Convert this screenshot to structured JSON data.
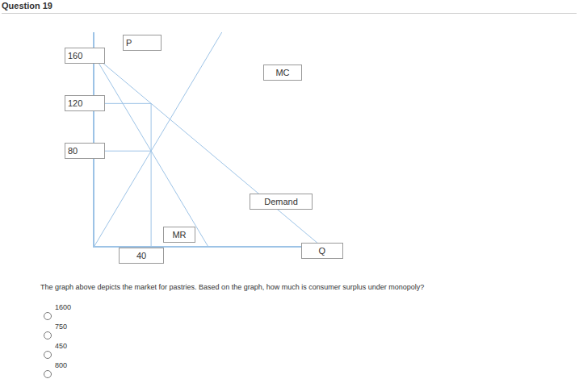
{
  "header": {
    "title": "Question 19"
  },
  "chart_data": {
    "type": "line",
    "x_label": "Q",
    "y_label": "P",
    "xlim": [
      0,
      170
    ],
    "ylim": [
      0,
      180
    ],
    "xticks": [
      40
    ],
    "yticks": [
      80,
      120,
      160
    ],
    "grid": false,
    "series": [
      {
        "name": "Demand",
        "color": "#9dc3e6",
        "x": [
          0,
          160
        ],
        "values": [
          160,
          0
        ]
      },
      {
        "name": "MR",
        "color": "#9dc3e6",
        "x": [
          0,
          80
        ],
        "values": [
          160,
          0
        ]
      },
      {
        "name": "MC",
        "color": "#9dc3e6",
        "x": [
          0,
          90
        ],
        "values": [
          0,
          180
        ]
      },
      {
        "color": "#9dc3e6",
        "x": [
          0,
          40,
          40
        ],
        "values": [
          120,
          120,
          0
        ]
      },
      {
        "color": "#9dc3e6",
        "x": [
          0,
          40
        ],
        "values": [
          80,
          80
        ]
      }
    ]
  },
  "question": {
    "text": "The graph above depicts the market for pastries. Based on the graph, how much is consumer surplus under monopoly?",
    "options": [
      "1600",
      "750",
      "450",
      "800"
    ]
  }
}
